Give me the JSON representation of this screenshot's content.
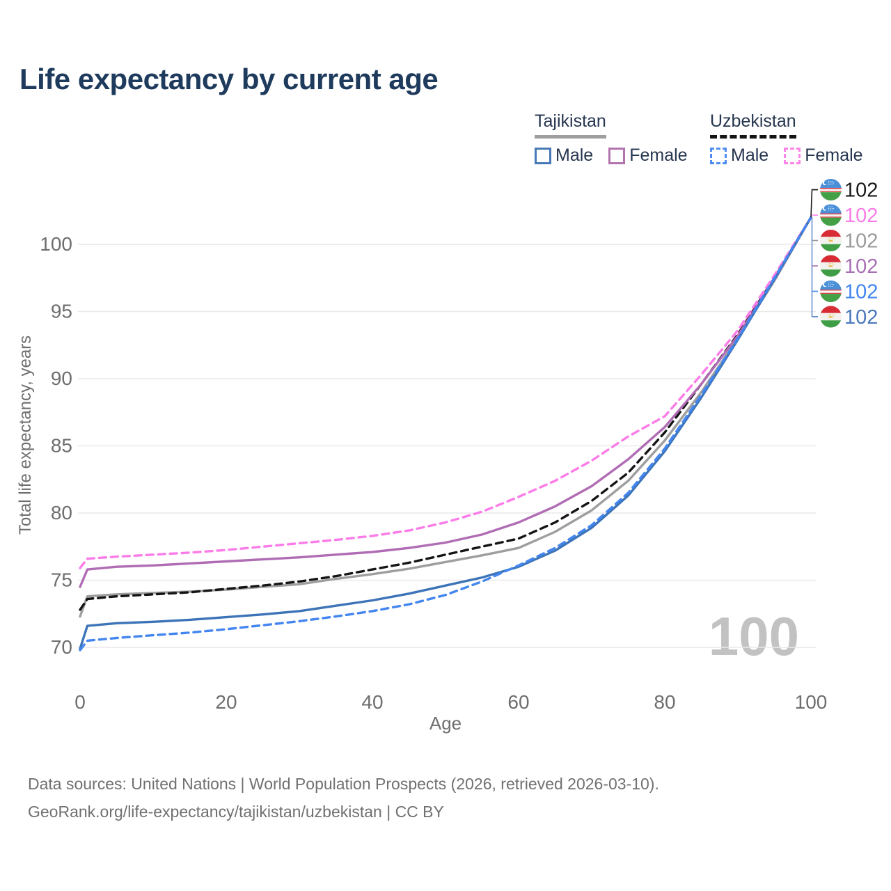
{
  "title": "Life expectancy by current age",
  "legend": {
    "groups": [
      {
        "country": "Tajikistan",
        "items": [
          {
            "label": "Male"
          },
          {
            "label": "Female"
          }
        ]
      },
      {
        "country": "Uzbekistan",
        "items": [
          {
            "label": "Male"
          },
          {
            "label": "Female"
          }
        ]
      }
    ]
  },
  "chart_data": {
    "type": "line",
    "title": "Life expectancy by current age",
    "xlabel": "Age",
    "ylabel": "Total life expectancy, years",
    "xlim": [
      0,
      100
    ],
    "ylim": [
      69,
      103
    ],
    "x_ticks": [
      0,
      20,
      40,
      60,
      80,
      100
    ],
    "y_ticks": [
      70,
      75,
      80,
      85,
      90,
      95,
      100
    ],
    "grid": "horizontal",
    "legend_position": "top-right",
    "watermark": "100",
    "x": [
      0,
      1,
      5,
      10,
      15,
      20,
      25,
      30,
      35,
      40,
      45,
      50,
      55,
      60,
      65,
      70,
      75,
      80,
      85,
      90,
      95,
      100
    ],
    "series": [
      {
        "key": "tj-total",
        "name": "Tajikistan",
        "country": "Tajikistan",
        "flag": "tj",
        "color": "#9e9e9e",
        "dashed": false,
        "values": [
          72.3,
          73.8,
          73.95,
          74.05,
          74.15,
          74.3,
          74.5,
          74.7,
          75.1,
          75.45,
          75.85,
          76.35,
          76.85,
          77.4,
          78.6,
          80.2,
          82.4,
          85.4,
          89.0,
          93.0,
          97.3,
          102
        ]
      },
      {
        "key": "uz-total",
        "name": "Uzbekistan",
        "country": "Uzbekistan",
        "flag": "uz",
        "color": "#141414",
        "dashed": true,
        "values": [
          72.8,
          73.6,
          73.8,
          73.95,
          74.1,
          74.35,
          74.6,
          74.9,
          75.3,
          75.8,
          76.3,
          76.9,
          77.5,
          78.1,
          79.3,
          80.9,
          83.0,
          86.0,
          89.6,
          93.3,
          97.5,
          102
        ]
      },
      {
        "key": "tj-female",
        "name": "Tajikistan Female",
        "country": "Tajikistan",
        "flag": "tj",
        "color": "#b06cb4",
        "dashed": false,
        "values": [
          74.5,
          75.8,
          76.0,
          76.1,
          76.25,
          76.4,
          76.55,
          76.7,
          76.9,
          77.1,
          77.4,
          77.8,
          78.4,
          79.3,
          80.5,
          82.0,
          84.0,
          86.4,
          89.6,
          93.2,
          97.4,
          102
        ]
      },
      {
        "key": "uz-female",
        "name": "Uzbekistan Female",
        "country": "Uzbekistan",
        "flag": "uz",
        "color": "#fb7ce8",
        "dashed": true,
        "values": [
          75.9,
          76.6,
          76.75,
          76.9,
          77.05,
          77.25,
          77.5,
          77.75,
          78.0,
          78.3,
          78.7,
          79.3,
          80.1,
          81.2,
          82.4,
          83.9,
          85.7,
          87.2,
          90.3,
          93.6,
          97.7,
          102
        ]
      },
      {
        "key": "tj-male",
        "name": "Tajikistan Male",
        "country": "Tajikistan",
        "flag": "tj",
        "color": "#3d74b8",
        "dashed": false,
        "values": [
          69.9,
          71.6,
          71.8,
          71.9,
          72.05,
          72.25,
          72.45,
          72.7,
          73.1,
          73.5,
          74.0,
          74.6,
          75.2,
          76.0,
          77.2,
          78.9,
          81.3,
          84.6,
          88.6,
          92.9,
          97.4,
          102
        ]
      },
      {
        "key": "uz-male",
        "name": "Uzbekistan Male",
        "country": "Uzbekistan",
        "flag": "uz",
        "color": "#4486ef",
        "dashed": true,
        "values": [
          69.8,
          70.5,
          70.7,
          70.9,
          71.1,
          71.35,
          71.65,
          71.95,
          72.3,
          72.7,
          73.2,
          73.9,
          74.9,
          76.1,
          77.4,
          79.1,
          81.5,
          84.8,
          88.8,
          93.0,
          97.5,
          102
        ]
      }
    ],
    "end_labels": [
      {
        "series": "uz-total",
        "value": "102",
        "color": "#1a1a1a"
      },
      {
        "series": "uz-female",
        "value": "102",
        "color": "#fb7ce8"
      },
      {
        "series": "tj-total",
        "value": "102",
        "color": "#9a9a9a"
      },
      {
        "series": "tj-female",
        "value": "102",
        "color": "#a86fb4"
      },
      {
        "series": "uz-male",
        "value": "102",
        "color": "#4286f0"
      },
      {
        "series": "tj-male",
        "value": "102",
        "color": "#4a78bc"
      }
    ]
  },
  "footer": {
    "line1": "Data sources: United Nations | World Population Prospects (2026, retrieved 2026-03-10).",
    "line2": "GeoRank.org/life-expectancy/tajikistan/uzbekistan | CC BY"
  }
}
